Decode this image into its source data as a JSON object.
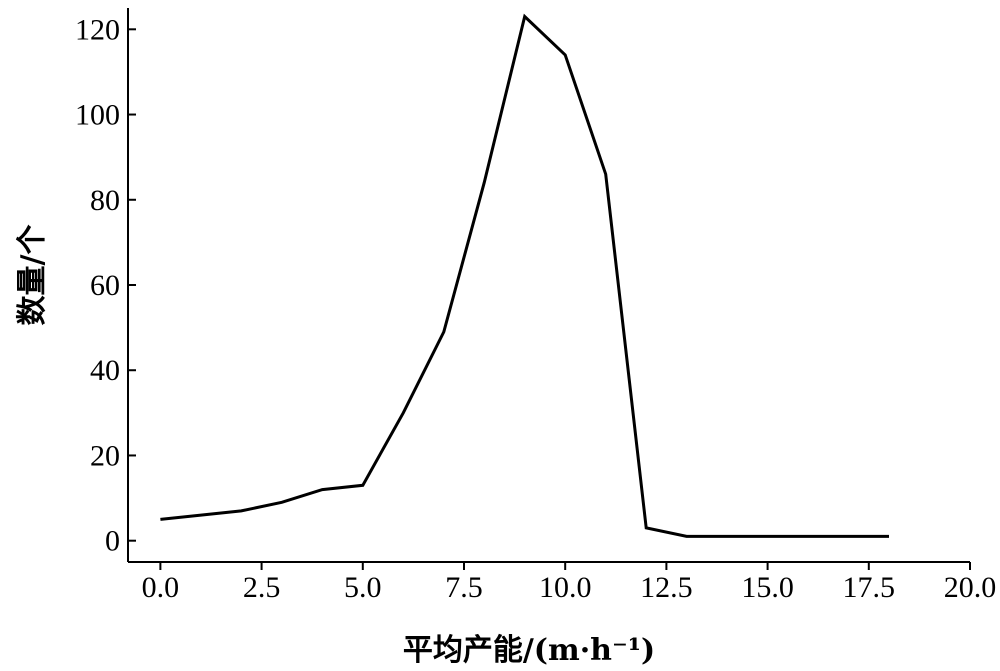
{
  "chart_data": {
    "type": "line",
    "title": "",
    "xlabel": "平均产能/(m·h⁻¹)",
    "ylabel": "数量/个",
    "xlim": [
      -0.8,
      20.0
    ],
    "ylim": [
      -5,
      125
    ],
    "x_ticks": [
      0.0,
      2.5,
      5.0,
      7.5,
      10.0,
      12.5,
      15.0,
      17.5,
      20.0
    ],
    "x_tick_labels": [
      "0.0",
      "2.5",
      "5.0",
      "7.5",
      "10.0",
      "12.5",
      "15.0",
      "17.5",
      "20.0"
    ],
    "y_ticks": [
      0,
      20,
      40,
      60,
      80,
      100,
      120
    ],
    "y_tick_labels": [
      "0",
      "20",
      "40",
      "60",
      "80",
      "100",
      "120"
    ],
    "grid": false,
    "legend": "none",
    "series": [
      {
        "color": "#000000",
        "x": [
          0,
          1,
          2,
          3,
          4,
          5,
          6,
          7,
          8,
          9,
          10,
          11,
          12,
          13,
          14,
          15,
          16,
          17,
          18
        ],
        "y": [
          5,
          6,
          7,
          9,
          12,
          13,
          30,
          49,
          84,
          123,
          114,
          86,
          3,
          1,
          1,
          1,
          1,
          1,
          1
        ]
      }
    ]
  }
}
